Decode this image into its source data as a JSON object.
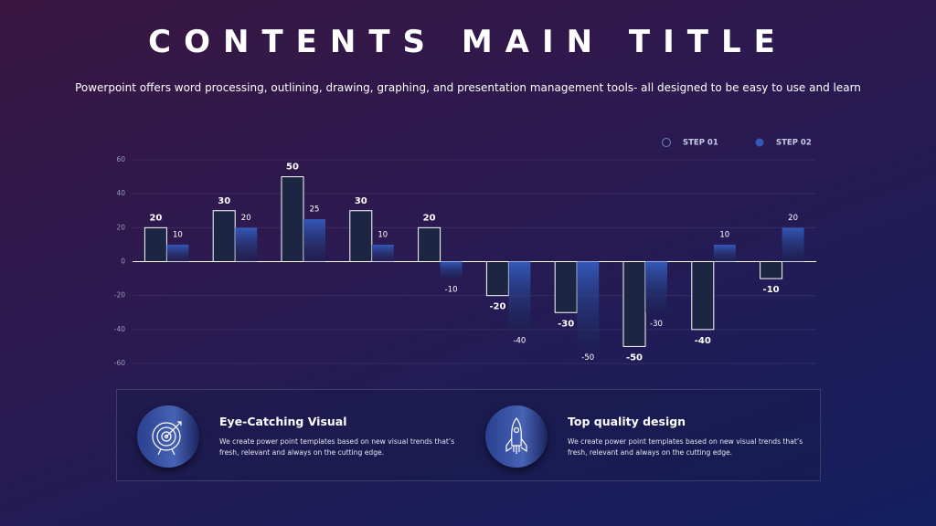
{
  "header": {
    "title": "CONTENTS MAIN TITLE",
    "subtitle": "Powerpoint offers word processing, outlining, drawing, graphing, and presentation management tools- all designed to be easy to use and learn"
  },
  "chart_data": {
    "type": "bar",
    "series": [
      {
        "name": "STEP 01",
        "color": "#1c2541",
        "values": [
          20,
          30,
          50,
          30,
          20,
          -20,
          -30,
          -50,
          -40,
          -10
        ]
      },
      {
        "name": "STEP 02",
        "color": "#3458b8",
        "values": [
          10,
          20,
          25,
          10,
          -10,
          -40,
          -50,
          -30,
          10,
          20
        ]
      }
    ],
    "ylim": [
      -60,
      60
    ],
    "yticks": [
      -60,
      -40,
      -20,
      0,
      20,
      40,
      60
    ],
    "grid": true,
    "legend": "top-right"
  },
  "features": [
    {
      "title": "Eye-Catching Visual",
      "text": "We create power point templates based on new visual trends that’s fresh, relevant and always on the cutting edge."
    },
    {
      "title": "Top quality design",
      "text": "We create power point templates based on new visual trends that’s fresh, relevant and always on the cutting edge."
    }
  ]
}
